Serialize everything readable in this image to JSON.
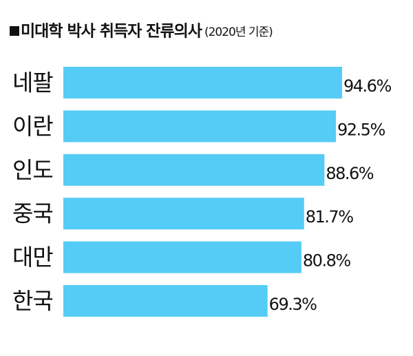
{
  "chart_data": {
    "type": "bar",
    "orientation": "horizontal",
    "title": "미대학 박사 취득자 잔류의사",
    "subtitle": "(2020년 기준)",
    "categories": [
      "네팔",
      "이란",
      "인도",
      "중국",
      "대만",
      "한국"
    ],
    "values": [
      94.6,
      92.5,
      88.6,
      81.7,
      80.8,
      69.3
    ],
    "value_labels": [
      "94.6%",
      "92.5%",
      "88.6%",
      "81.7%",
      "80.8%",
      "69.3%"
    ],
    "color": "#55ccf5"
  }
}
